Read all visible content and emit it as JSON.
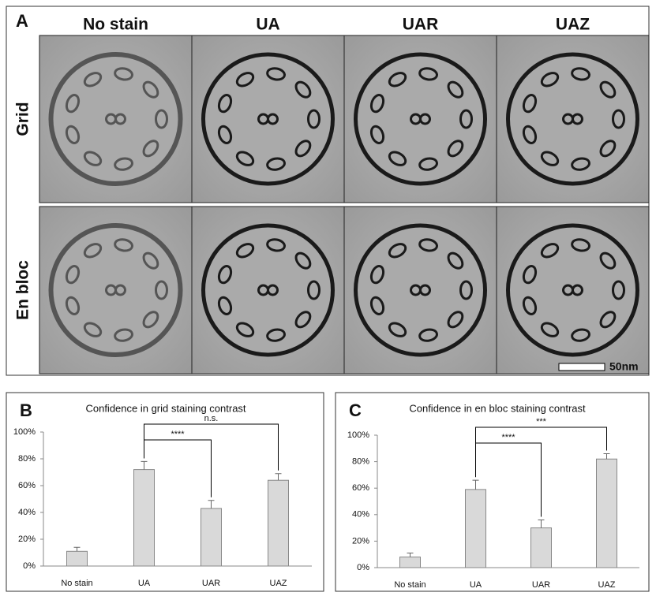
{
  "panel_a": {
    "label": "A",
    "columns": [
      "No stain",
      "UA",
      "UAR",
      "UAZ"
    ],
    "rows": [
      "Grid",
      "En bloc"
    ],
    "scale_bar": "50nm"
  },
  "chart_data": [
    {
      "type": "bar",
      "panel": "B",
      "title": "Confidence in grid staining contrast",
      "categories": [
        "No stain",
        "UA",
        "UAR",
        "UAZ"
      ],
      "series": [
        {
          "color": "#d9d9d9",
          "values": [
            11,
            72,
            43,
            64
          ],
          "errors": [
            3,
            6,
            6,
            5
          ]
        }
      ],
      "ylim": [
        0,
        100
      ],
      "yticks": [
        {
          "value": 0,
          "label": "0%"
        },
        {
          "value": 20,
          "label": "20%"
        },
        {
          "value": 40,
          "label": "40%"
        },
        {
          "value": 60,
          "label": "60%"
        },
        {
          "value": 80,
          "label": "80%"
        },
        {
          "value": 100,
          "label": "100%"
        }
      ],
      "annotations": [
        {
          "text": "****",
          "between": [
            "UA",
            "UAR"
          ]
        },
        {
          "text": "n.s.",
          "between": [
            "UA",
            "UAZ"
          ]
        }
      ]
    },
    {
      "type": "bar",
      "panel": "C",
      "title": "Confidence in en bloc staining contrast",
      "categories": [
        "No stain",
        "UA",
        "UAR",
        "UAZ"
      ],
      "series": [
        {
          "color": "#d9d9d9",
          "values": [
            8,
            59,
            30,
            82
          ],
          "errors": [
            3,
            7,
            6,
            4
          ]
        }
      ],
      "ylim": [
        0,
        100
      ],
      "yticks": [
        {
          "value": 0,
          "label": "0%"
        },
        {
          "value": 20,
          "label": "20%"
        },
        {
          "value": 40,
          "label": "40%"
        },
        {
          "value": 60,
          "label": "60%"
        },
        {
          "value": 80,
          "label": "80%"
        },
        {
          "value": 100,
          "label": "100%"
        }
      ],
      "annotations": [
        {
          "text": "****",
          "between": [
            "UA",
            "UAR"
          ]
        },
        {
          "text": "***",
          "between": [
            "UA",
            "UAZ"
          ]
        }
      ]
    }
  ]
}
